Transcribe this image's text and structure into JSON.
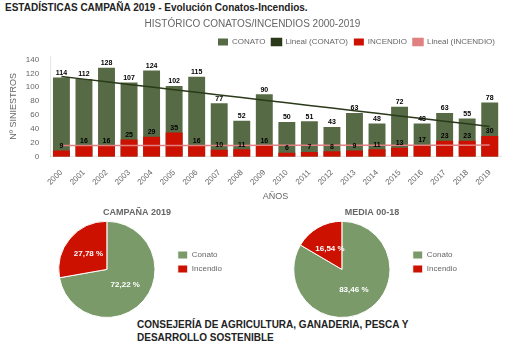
{
  "title": "ESTADÍSTICAS CAMPAÑA 2019 - Evolución Conatos-Incendios.",
  "annotations": [
    "CONSEJERÍA DE AGRICULTURA, GANADERIA, PESCA Y",
    "DESARROLLO SOSTENIBLE"
  ],
  "chart_data": [
    {
      "type": "bar",
      "title": "HISTÓRICO CONATOS/INCENDIOS 2000-2019",
      "xlabel": "AÑOS",
      "ylabel": "Nº SINIESTROS",
      "categories": [
        "2000",
        "2001",
        "2002",
        "2003",
        "2004",
        "2005",
        "2006",
        "2007",
        "2008",
        "2009",
        "2010",
        "2011",
        "2012",
        "2013",
        "2014",
        "2015",
        "2016",
        "2017",
        "2018",
        "2019"
      ],
      "series": [
        {
          "name": "CONATO",
          "type": "bar",
          "color": "#566b45",
          "data_labels": true,
          "values": [
            114,
            112,
            128,
            107,
            124,
            102,
            115,
            77,
            52,
            90,
            50,
            51,
            43,
            63,
            48,
            72,
            48,
            63,
            55,
            78
          ]
        },
        {
          "name": "Lineal (CONATO)",
          "type": "line",
          "color": "#2a3a1a",
          "values": [
            115.53,
            111.75,
            107.96,
            104.18,
            100.4,
            96.62,
            92.84,
            89.05,
            85.27,
            81.49,
            77.71,
            73.93,
            70.15,
            66.36,
            62.58,
            58.8,
            55.02,
            51.24,
            47.45,
            43.67
          ]
        },
        {
          "name": "INCENDIO",
          "type": "bar",
          "color": "#cc1100",
          "data_labels": true,
          "values": [
            9,
            16,
            16,
            25,
            29,
            35,
            16,
            10,
            11,
            16,
            6,
            7,
            8,
            9,
            11,
            13,
            17,
            23,
            23,
            30
          ]
        },
        {
          "name": "Lineal (INCENDIO)",
          "type": "line",
          "color": "#e08080",
          "values": [
            16.17,
            16.21,
            16.24,
            16.28,
            16.31,
            16.34,
            16.38,
            16.41,
            16.45,
            16.48,
            16.52,
            16.55,
            16.59,
            16.62,
            16.66,
            16.69,
            16.72,
            16.76,
            16.79,
            16.83
          ]
        }
      ],
      "ylim": [
        0,
        145
      ],
      "yticks": [
        0,
        20,
        40,
        60,
        80,
        100,
        120,
        140
      ],
      "grid": false,
      "legend": "upper right"
    },
    {
      "type": "pie",
      "title": "CAMPAÑA 2019",
      "categories": [
        "Conato",
        "Incendio"
      ],
      "values": [
        72.22,
        27.78
      ],
      "value_labels": [
        "72,22 %",
        "27,78 %"
      ],
      "colors": [
        "#7a9a6a",
        "#cc1100"
      ],
      "data_labels": true,
      "legend": "right"
    },
    {
      "type": "pie",
      "title": "MEDIA 00-18",
      "categories": [
        "Conato",
        "Incendio"
      ],
      "values": [
        83.46,
        16.54
      ],
      "value_labels": [
        "83,46 %",
        "16,54 %"
      ],
      "colors": [
        "#7a9a6a",
        "#cc1100"
      ],
      "data_labels": true,
      "legend": "right"
    }
  ]
}
